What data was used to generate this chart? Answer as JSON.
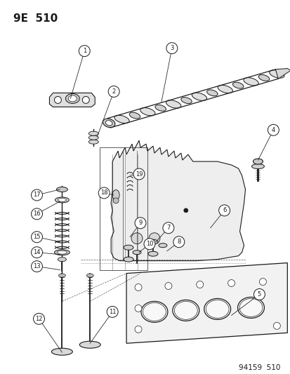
{
  "title": "9E  510",
  "footer": "94159  510",
  "bg_color": "#ffffff",
  "line_color": "#1a1a1a",
  "title_fontsize": 11,
  "footer_fontsize": 7.5,
  "fig_width": 4.14,
  "fig_height": 5.33,
  "dpi": 100
}
